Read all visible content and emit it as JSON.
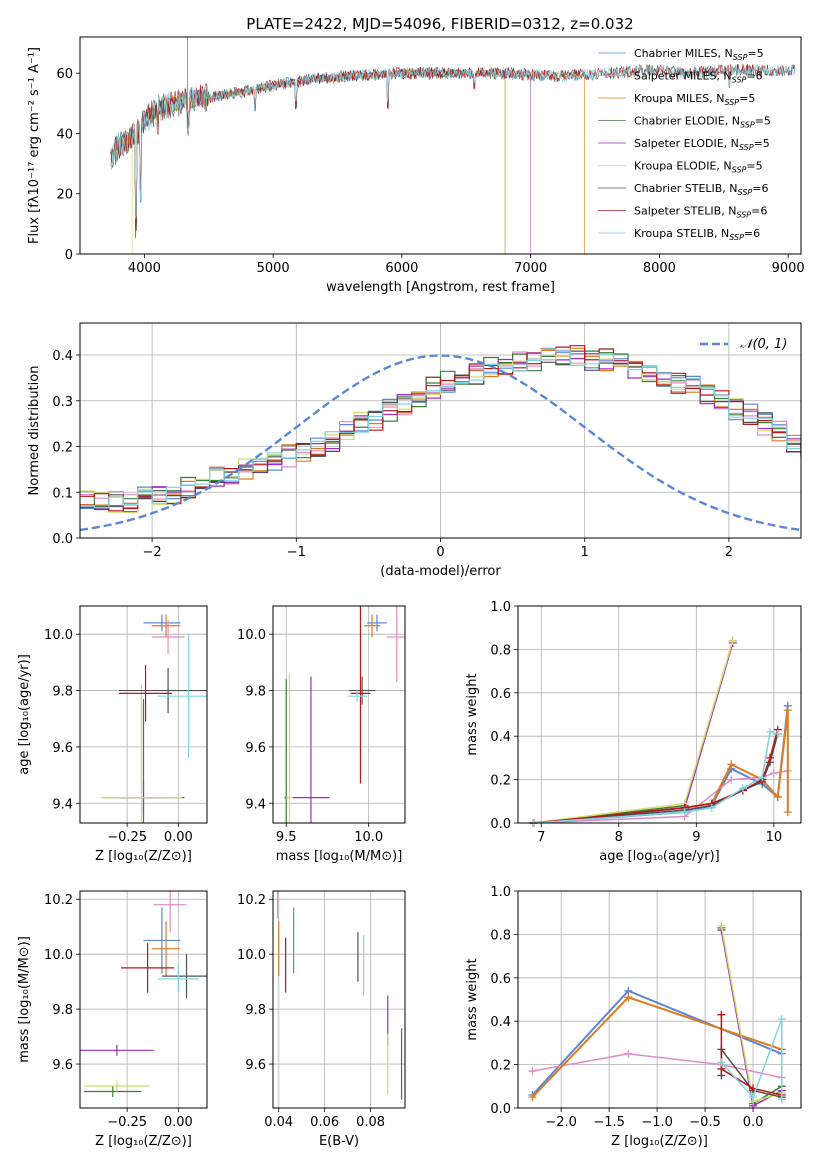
{
  "figure_title": "PLATE=2422, MJD=54096, FIBERID=0312, z=0.032",
  "colors": {
    "Chabrier MILES": "#5b87d6",
    "Salpeter MILES": "#e38bc9",
    "Kroupa MILES": "#de7b1f",
    "Chabrier ELODIE": "#3d7d3b",
    "Salpeter ELODIE": "#9b2ec4",
    "Kroupa ELODIE": "#d4dc6a",
    "Chabrier STELIB": "#505050",
    "Salpeter STELIB": "#b41818",
    "Kroupa STELIB": "#80d4e0",
    "normal": "#5b87d6",
    "grid": "#b0b0b0"
  },
  "chart_data": [
    {
      "id": "spectrum",
      "type": "line",
      "title": "PLATE=2422, MJD=54096, FIBERID=0312, z=0.032",
      "xlabel": "wavelength [Angstrom, rest frame]",
      "ylabel": "Flux [fλ10⁻¹⁷ erg cm⁻² s⁻¹ A⁻¹]",
      "xlim": [
        3500,
        9100
      ],
      "ylim": [
        0,
        72
      ],
      "xticks": [
        4000,
        5000,
        6000,
        7000,
        8000,
        9000
      ],
      "yticks": [
        0,
        20,
        40,
        60
      ],
      "grid": false,
      "legend": "top-right",
      "continuum_x": [
        3740,
        3800,
        3900,
        4000,
        4100,
        4300,
        4500,
        4800,
        5000,
        5300,
        5600,
        6000,
        6400,
        6800,
        7200,
        7600,
        7900,
        8200,
        8500,
        8800,
        9050
      ],
      "continuum_y": [
        32,
        36,
        38,
        44,
        48,
        51,
        52,
        54,
        56,
        58,
        59,
        60,
        60,
        60,
        59,
        60,
        61,
        60,
        61,
        61,
        61
      ],
      "series": [
        {
          "name": "Chabrier MILES, N_SSP=5",
          "xmax": 7000
        },
        {
          "name": "Salpeter MILES, N_SSP=6",
          "xmax": 7000
        },
        {
          "name": "Kroupa MILES, N_SSP=5",
          "xmax": 7420
        },
        {
          "name": "Chabrier ELODIE, N_SSP=5",
          "xmax": 6800
        },
        {
          "name": "Salpeter ELODIE, N_SSP=5",
          "xmax": 6800
        },
        {
          "name": "Kroupa ELODIE, N_SSP=5",
          "xmax": 6800
        },
        {
          "name": "Chabrier STELIB, N_SSP=6",
          "xmax": 9050
        },
        {
          "name": "Salpeter STELIB, N_SSP=6",
          "xmax": 9050
        },
        {
          "name": "Kroupa STELIB, N_SSP=6",
          "xmax": 9050
        }
      ]
    },
    {
      "id": "residuals",
      "type": "line",
      "xlabel": "(data-model)/error",
      "ylabel": "Normed distribution",
      "xlim": [
        -2.5,
        2.5
      ],
      "ylim": [
        0,
        0.47
      ],
      "xticks": [
        -2,
        -1,
        0,
        1,
        2
      ],
      "yticks": [
        0.0,
        0.1,
        0.2,
        0.3,
        0.4
      ],
      "grid": true,
      "legend": "top-right",
      "legend_label": "𝒩(0, 1)",
      "bin_width": 0.1,
      "bin_start": -2.5,
      "reference_hist": [
        0.08,
        0.08,
        0.08,
        0.08,
        0.09,
        0.09,
        0.1,
        0.11,
        0.12,
        0.13,
        0.14,
        0.15,
        0.16,
        0.17,
        0.18,
        0.19,
        0.2,
        0.21,
        0.23,
        0.25,
        0.26,
        0.28,
        0.29,
        0.31,
        0.33,
        0.34,
        0.35,
        0.36,
        0.37,
        0.38,
        0.39,
        0.39,
        0.4,
        0.4,
        0.4,
        0.39,
        0.39,
        0.38,
        0.37,
        0.36,
        0.35,
        0.34,
        0.33,
        0.31,
        0.3,
        0.28,
        0.27,
        0.25,
        0.23,
        0.21,
        0.2,
        0.18,
        0.17,
        0.15,
        0.14,
        0.13,
        0.12,
        0.1,
        0.09,
        0.08,
        0.07,
        0.06,
        0.05,
        0.05,
        0.04,
        0.04,
        0.03,
        0.03,
        0.03,
        0.03,
        0.02,
        0.02,
        0.02,
        0.02,
        0.02
      ]
    },
    {
      "id": "age-vs-Z",
      "type": "scatter",
      "xlabel": "Z [log₁₀(Z/Z⊙)]",
      "ylabel": "age  [log₁₀(age/yr)]",
      "xlim": [
        -0.48,
        0.14
      ],
      "ylim": [
        9.33,
        10.1
      ],
      "xticks": [
        -0.25,
        0.0
      ],
      "xticklabels": [
        "−0.25",
        "0.00"
      ],
      "yticks": [
        9.4,
        9.6,
        9.8,
        10.0
      ],
      "grid": true,
      "points": [
        {
          "series": "Chabrier MILES",
          "x": -0.08,
          "y": 10.04,
          "xerr": 0.09,
          "yerr": 0.03
        },
        {
          "series": "Salpeter MILES",
          "x": -0.05,
          "y": 9.99,
          "xerr": 0.08,
          "yerr": 0.06
        },
        {
          "series": "Kroupa MILES",
          "x": -0.06,
          "y": 10.03,
          "xerr": 0.07,
          "yerr": 0.04
        },
        {
          "series": "Chabrier ELODIE",
          "x": -0.17,
          "y": 9.42,
          "xerr": 0.2,
          "yerr": 0.35
        },
        {
          "series": "Salpeter ELODIE",
          "x": -0.17,
          "y": 9.42,
          "xerr": 0.12,
          "yerr": 0.06
        },
        {
          "series": "Kroupa ELODIE",
          "x": -0.18,
          "y": 9.42,
          "xerr": 0.2,
          "yerr": 0.4
        },
        {
          "series": "Chabrier STELIB",
          "x": -0.05,
          "y": 9.8,
          "xerr": 0.24,
          "yerr": 0.08
        },
        {
          "series": "Salpeter STELIB",
          "x": -0.16,
          "y": 9.79,
          "xerr": 0.13,
          "yerr": 0.1
        },
        {
          "series": "Kroupa STELIB",
          "x": 0.05,
          "y": 9.78,
          "xerr": 0.15,
          "yerr": 0.22
        }
      ]
    },
    {
      "id": "age-vs-mass",
      "type": "scatter",
      "xlabel": "mass [log₁₀(M/M⊙)]",
      "ylabel": "",
      "xlim": [
        9.42,
        10.22
      ],
      "ylim": [
        9.33,
        10.1
      ],
      "xticks": [
        9.5,
        10.0
      ],
      "yticks": [
        9.4,
        9.6,
        9.8,
        10.0
      ],
      "grid": true,
      "points": [
        {
          "series": "Chabrier MILES",
          "x": 10.05,
          "y": 10.04,
          "xerr": 0.06,
          "yerr": 0.03
        },
        {
          "series": "Salpeter MILES",
          "x": 10.17,
          "y": 9.99,
          "xerr": 0.06,
          "yerr": 0.16
        },
        {
          "series": "Kroupa MILES",
          "x": 10.02,
          "y": 10.03,
          "xerr": 0.05,
          "yerr": 0.04
        },
        {
          "series": "Chabrier ELODIE",
          "x": 9.5,
          "y": 9.42,
          "xerr": 0.01,
          "yerr": 0.42
        },
        {
          "series": "Salpeter ELODIE",
          "x": 9.65,
          "y": 9.42,
          "xerr": 0.11,
          "yerr": 0.43
        },
        {
          "series": "Kroupa ELODIE",
          "x": 9.52,
          "y": 9.42,
          "xerr": 0.02,
          "yerr": 0.44
        },
        {
          "series": "Chabrier STELIB",
          "x": 9.96,
          "y": 9.8,
          "xerr": 0.08,
          "yerr": 0.05
        },
        {
          "series": "Salpeter STELIB",
          "x": 9.95,
          "y": 9.79,
          "xerr": 0.06,
          "yerr": 0.32
        },
        {
          "series": "Kroupa STELIB",
          "x": 9.93,
          "y": 9.78,
          "xerr": 0.06,
          "yerr": 0.02
        }
      ]
    },
    {
      "id": "weight-vs-age",
      "type": "line",
      "xlabel": "age  [log₁₀(age/yr)]",
      "ylabel": "mass weight",
      "xlim": [
        6.7,
        10.35
      ],
      "ylim": [
        0,
        1
      ],
      "xticks": [
        7,
        8,
        9,
        10
      ],
      "yticks": [
        0.0,
        0.2,
        0.4,
        0.6,
        0.8,
        1.0
      ],
      "grid": true,
      "series": [
        {
          "name": "Chabrier MILES",
          "x": [
            6.9,
            8.85,
            9.2,
            9.45,
            9.85,
            10.05,
            10.18
          ],
          "y": [
            0.0,
            0.05,
            0.08,
            0.25,
            0.18,
            0.12,
            0.54
          ]
        },
        {
          "name": "Salpeter MILES",
          "x": [
            6.9,
            8.85,
            9.45,
            9.85,
            10.0,
            10.18
          ],
          "y": [
            0.0,
            0.03,
            0.2,
            0.21,
            0.23,
            0.24
          ]
        },
        {
          "name": "Kroupa MILES",
          "x": [
            6.9,
            8.85,
            9.2,
            9.45,
            9.85,
            10.05,
            10.18,
            10.18
          ],
          "y": [
            0.0,
            0.07,
            0.09,
            0.27,
            0.2,
            0.12,
            0.52,
            0.05
          ]
        },
        {
          "name": "Chabrier ELODIE",
          "x": [
            6.9,
            8.85,
            9.47
          ],
          "y": [
            0.0,
            0.08,
            0.84
          ]
        },
        {
          "name": "Salpeter ELODIE",
          "x": [
            6.9,
            8.85,
            9.47
          ],
          "y": [
            0.0,
            0.07,
            0.83
          ]
        },
        {
          "name": "Kroupa ELODIE",
          "x": [
            6.9,
            8.85,
            9.47
          ],
          "y": [
            0.0,
            0.09,
            0.84
          ]
        },
        {
          "name": "Chabrier STELIB",
          "x": [
            6.9,
            8.85,
            9.2,
            9.6,
            9.85,
            9.95,
            10.05
          ],
          "y": [
            0.0,
            0.06,
            0.08,
            0.15,
            0.19,
            0.28,
            0.41
          ]
        },
        {
          "name": "Salpeter STELIB",
          "x": [
            6.9,
            8.85,
            9.2,
            9.6,
            9.85,
            9.95,
            10.05
          ],
          "y": [
            0.0,
            0.07,
            0.09,
            0.15,
            0.2,
            0.3,
            0.43
          ]
        },
        {
          "name": "Kroupa STELIB",
          "x": [
            6.9,
            8.85,
            9.2,
            9.6,
            9.85,
            9.95,
            10.05
          ],
          "y": [
            0.0,
            0.05,
            0.07,
            0.16,
            0.21,
            0.42,
            0.41
          ]
        }
      ]
    },
    {
      "id": "mass-vs-Z",
      "type": "scatter",
      "xlabel": "Z [log₁₀(Z/Z⊙)]",
      "ylabel": "mass [log₁₀(M/M⊙)]",
      "xlim": [
        -0.48,
        0.14
      ],
      "ylim": [
        9.44,
        10.23
      ],
      "xticks": [
        -0.25,
        0.0
      ],
      "xticklabels": [
        "−0.25",
        "0.00"
      ],
      "yticks": [
        9.6,
        9.8,
        10.0,
        10.2
      ],
      "grid": true,
      "points": [
        {
          "series": "Chabrier MILES",
          "x": -0.08,
          "y": 10.05,
          "xerr": 0.09,
          "yerr": 0.12
        },
        {
          "series": "Salpeter MILES",
          "x": -0.04,
          "y": 10.18,
          "xerr": 0.08,
          "yerr": 0.1
        },
        {
          "series": "Kroupa MILES",
          "x": -0.06,
          "y": 10.02,
          "xerr": 0.07,
          "yerr": 0.1
        },
        {
          "series": "Chabrier ELODIE",
          "x": -0.32,
          "y": 9.5,
          "xerr": 0.14,
          "yerr": 0.02
        },
        {
          "series": "Salpeter ELODIE",
          "x": -0.3,
          "y": 9.65,
          "xerr": 0.18,
          "yerr": 0.02
        },
        {
          "series": "Kroupa ELODIE",
          "x": -0.3,
          "y": 9.52,
          "xerr": 0.16,
          "yerr": 0.02
        },
        {
          "series": "Chabrier STELIB",
          "x": 0.04,
          "y": 9.92,
          "xerr": 0.12,
          "yerr": 0.08
        },
        {
          "series": "Salpeter STELIB",
          "x": -0.15,
          "y": 9.95,
          "xerr": 0.13,
          "yerr": 0.09
        },
        {
          "series": "Kroupa STELIB",
          "x": 0.0,
          "y": 9.91,
          "xerr": 0.1,
          "yerr": 0.05
        }
      ]
    },
    {
      "id": "mass-vs-ebv",
      "type": "scatter",
      "xlabel": "E(B-V)",
      "ylabel": "",
      "xlim": [
        0.0375,
        0.095
      ],
      "ylim": [
        9.44,
        10.23
      ],
      "xticks": [
        0.04,
        0.06,
        0.08
      ],
      "xticklabels": [
        "0.04",
        "0.06",
        "0.08"
      ],
      "yticks": [
        9.6,
        9.8,
        10.0,
        10.2
      ],
      "grid": true,
      "points": [
        {
          "series": "Chabrier MILES",
          "x": 0.0465,
          "y": 10.05,
          "yerr": 0.12
        },
        {
          "series": "Salpeter MILES",
          "x": 0.0395,
          "y": 10.18,
          "yerr": 0.05
        },
        {
          "series": "Kroupa MILES",
          "x": 0.04,
          "y": 10.02,
          "yerr": 0.1
        },
        {
          "series": "Chabrier ELODIE",
          "x": 0.0935,
          "y": 9.6,
          "yerr": 0.13
        },
        {
          "series": "Salpeter ELODIE",
          "x": 0.0875,
          "y": 9.76,
          "yerr": 0.09
        },
        {
          "series": "Kroupa ELODIE",
          "x": 0.0875,
          "y": 9.6,
          "yerr": 0.11
        },
        {
          "series": "Chabrier STELIB",
          "x": 0.0745,
          "y": 9.99,
          "yerr": 0.09
        },
        {
          "series": "Salpeter STELIB",
          "x": 0.043,
          "y": 9.96,
          "yerr": 0.1
        },
        {
          "series": "Kroupa STELIB",
          "x": 0.077,
          "y": 9.96,
          "yerr": 0.11
        }
      ]
    },
    {
      "id": "weight-vs-Z",
      "type": "line",
      "xlabel": "Z [log₁₀(Z/Z⊙)]",
      "ylabel": "mass weight",
      "xlim": [
        -2.45,
        0.5
      ],
      "ylim": [
        0,
        1
      ],
      "xticks": [
        -2.0,
        -1.5,
        -1.0,
        -0.5,
        0.0
      ],
      "xticklabels": [
        "−2.0",
        "−1.5",
        "−1.0",
        "−0.5",
        "0.0"
      ],
      "yticks": [
        0.0,
        0.2,
        0.4,
        0.6,
        0.8,
        1.0
      ],
      "grid": true,
      "series": [
        {
          "name": "Chabrier MILES",
          "x": [
            -2.3,
            -1.3,
            0.3
          ],
          "y": [
            0.06,
            0.54,
            0.25
          ]
        },
        {
          "name": "Salpeter MILES",
          "x": [
            -2.3,
            -1.3,
            -0.33,
            0.3
          ],
          "y": [
            0.17,
            0.25,
            0.2,
            0.14
          ]
        },
        {
          "name": "Kroupa MILES",
          "x": [
            -2.3,
            -1.3,
            0.3
          ],
          "y": [
            0.05,
            0.51,
            0.27
          ]
        },
        {
          "name": "Chabrier ELODIE",
          "x": [
            -0.33,
            0.0,
            0.3
          ],
          "y": [
            0.83,
            0.02,
            0.1
          ]
        },
        {
          "name": "Salpeter ELODIE",
          "x": [
            -0.33,
            0.0,
            0.3
          ],
          "y": [
            0.82,
            0.01,
            0.08
          ]
        },
        {
          "name": "Kroupa ELODIE",
          "x": [
            -0.33,
            0.0,
            0.3
          ],
          "y": [
            0.84,
            0.03,
            0.07
          ]
        },
        {
          "name": "Chabrier STELIB",
          "x": [
            -0.33,
            -0.33,
            0.0,
            0.3
          ],
          "y": [
            0.15,
            0.27,
            0.08,
            0.05
          ]
        },
        {
          "name": "Salpeter STELIB",
          "x": [
            -0.33,
            -0.33,
            0.0,
            0.3
          ],
          "y": [
            0.43,
            0.18,
            0.09,
            0.06
          ]
        },
        {
          "name": "Kroupa STELIB",
          "x": [
            -0.33,
            0.0,
            0.3,
            0.3
          ],
          "y": [
            0.21,
            0.05,
            0.41,
            0.04
          ]
        }
      ]
    }
  ]
}
